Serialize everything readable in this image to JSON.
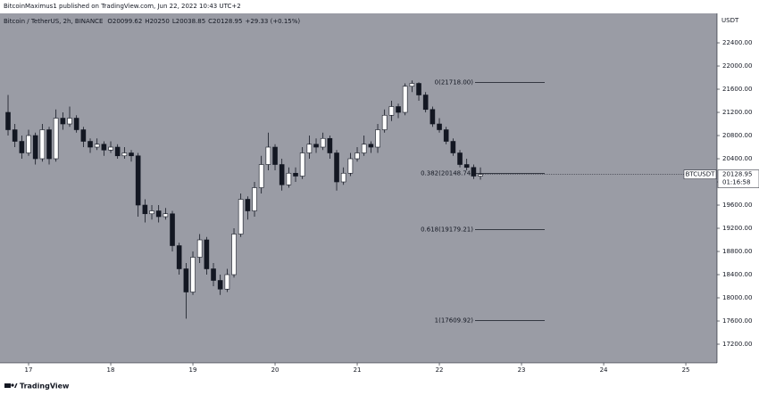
{
  "header": {
    "publisher": "BitcoinMaximus1 published on TradingView.com, Jun 22, 2022 10:43 UTC+2"
  },
  "footer": {
    "brand": "TradingView"
  },
  "chart_data": {
    "type": "candlestick",
    "legend": {
      "symbol_line": "Bitcoin / TetherUS, 2h, BINANCE",
      "ohlc_labels": [
        "O",
        "H",
        "L",
        "C"
      ],
      "change": "+29.33 (+0.15%)"
    },
    "axis_unit": "USDT",
    "last_price": {
      "symbol": "BTCUSDT",
      "countdown": "01:16:58"
    },
    "up_color": "#ffffff",
    "down_color": "#131722",
    "background": "#9a9ca5",
    "x": [
      16.75,
      16.833,
      16.917,
      17,
      17.083,
      17.167,
      17.25,
      17.333,
      17.417,
      17.5,
      17.583,
      17.667,
      17.75,
      17.833,
      17.917,
      18,
      18.083,
      18.167,
      18.25,
      18.333,
      18.417,
      18.5,
      18.583,
      18.667,
      18.75,
      18.833,
      18.917,
      19,
      19.083,
      19.167,
      19.25,
      19.333,
      19.417,
      19.5,
      19.583,
      19.667,
      19.75,
      19.833,
      19.917,
      20,
      20.083,
      20.167,
      20.25,
      20.333,
      20.417,
      20.5,
      20.583,
      20.667,
      20.75,
      20.833,
      20.917,
      21,
      21.083,
      21.167,
      21.25,
      21.333,
      21.417,
      21.5,
      21.583,
      21.667,
      21.75,
      21.833,
      21.917,
      22,
      22.083,
      22.167,
      22.25,
      22.333,
      22.417,
      22.5
    ],
    "open": [
      21200,
      20900,
      20700,
      20500,
      20800,
      20400,
      20900,
      20400,
      21100,
      21000,
      21100,
      20900,
      20700,
      20600,
      20650,
      20550,
      20600,
      20450,
      20500,
      20450,
      19600,
      19450,
      19500,
      19400,
      19450,
      18900,
      18500,
      18100,
      18700,
      19000,
      18500,
      18300,
      18150,
      18400,
      19100,
      19700,
      19500,
      19900,
      20300,
      20600,
      20300,
      19950,
      20150,
      20100,
      20500,
      20650,
      20600,
      20750,
      20500,
      20000,
      20150,
      20400,
      20500,
      20650,
      20600,
      20900,
      21150,
      21300,
      21200,
      21650,
      21700,
      21500,
      21250,
      21000,
      20900,
      20700,
      20500,
      20300,
      20250,
      20099.62
    ],
    "high": [
      21500,
      21000,
      20800,
      20900,
      20850,
      21000,
      20950,
      21250,
      21200,
      21300,
      21150,
      20950,
      20750,
      20750,
      20700,
      20700,
      20650,
      20600,
      20550,
      20500,
      19700,
      19600,
      19600,
      19550,
      19500,
      18950,
      18600,
      18800,
      19100,
      19050,
      18600,
      18400,
      18500,
      19200,
      19800,
      19750,
      20000,
      20450,
      20850,
      20650,
      20400,
      20250,
      20250,
      20600,
      20800,
      20750,
      20850,
      20800,
      20550,
      20250,
      20500,
      20600,
      20800,
      20700,
      21000,
      21250,
      21400,
      21350,
      21700,
      21750,
      21720,
      21550,
      21300,
      21100,
      20950,
      20750,
      20550,
      20400,
      20300,
      20250
    ],
    "low": [
      20800,
      20600,
      20400,
      20450,
      20300,
      20350,
      20300,
      20350,
      20900,
      20950,
      20850,
      20600,
      20500,
      20550,
      20450,
      20500,
      20400,
      20400,
      20350,
      19400,
      19300,
      19350,
      19300,
      19350,
      18800,
      18400,
      17640,
      18050,
      18600,
      18400,
      18200,
      18050,
      18100,
      18350,
      19050,
      19350,
      19400,
      19800,
      20200,
      20200,
      19850,
      19900,
      20000,
      20050,
      20400,
      20500,
      20550,
      20400,
      19850,
      19950,
      20100,
      20350,
      20450,
      20500,
      20500,
      20850,
      21050,
      21100,
      21150,
      21550,
      21400,
      21200,
      20950,
      20850,
      20650,
      20450,
      20250,
      20200,
      20050,
      20038.85
    ],
    "close": [
      20900,
      20700,
      20500,
      20800,
      20400,
      20900,
      20400,
      21100,
      21000,
      21100,
      20900,
      20700,
      20600,
      20650,
      20550,
      20600,
      20450,
      20500,
      20450,
      19600,
      19450,
      19500,
      19400,
      19450,
      18900,
      18500,
      18100,
      18700,
      19000,
      18500,
      18300,
      18150,
      18400,
      19100,
      19700,
      19500,
      19900,
      20300,
      20600,
      20300,
      19950,
      20150,
      20100,
      20500,
      20650,
      20600,
      20750,
      20500,
      20000,
      20150,
      20400,
      20500,
      20650,
      20600,
      20900,
      21150,
      21300,
      21200,
      21650,
      21700,
      21500,
      21250,
      21000,
      20900,
      20700,
      20500,
      20300,
      20250,
      20100,
      20128.95
    ],
    "fib_levels": [
      {
        "value": 21718,
        "label": "0(21718.00)"
      },
      {
        "value": 20148.74,
        "label": "0.382(20148.74)"
      },
      {
        "value": 19179.21,
        "label": "0.618(19179.21)"
      },
      {
        "value": 17609.92,
        "label": "1(17609.92)"
      }
    ],
    "xlim": [
      16.652,
      25.38
    ],
    "xticks": [
      17,
      18,
      19,
      20,
      21,
      22,
      23,
      24,
      25
    ],
    "ylim": [
      16877,
      22908
    ],
    "yticks": [
      {
        "value": 17200,
        "label": "17200.00"
      },
      {
        "value": 17600,
        "label": "17600.00"
      },
      {
        "value": 18000,
        "label": "18000.00"
      },
      {
        "value": 18400,
        "label": "18400.00"
      },
      {
        "value": 18800,
        "label": "18800.00"
      },
      {
        "value": 19200,
        "label": "19200.00"
      },
      {
        "value": 19600,
        "label": "19600.00"
      },
      {
        "value": 20000,
        "label": "20000.00"
      },
      {
        "value": 20400,
        "label": "20400.00"
      },
      {
        "value": 20800,
        "label": "20800.00"
      },
      {
        "value": 21200,
        "label": "21200.00"
      },
      {
        "value": 21600,
        "label": "21600.00"
      },
      {
        "value": 22000,
        "label": "22000.00"
      },
      {
        "value": 22400,
        "label": "22400.00"
      }
    ],
    "grid": false
  }
}
